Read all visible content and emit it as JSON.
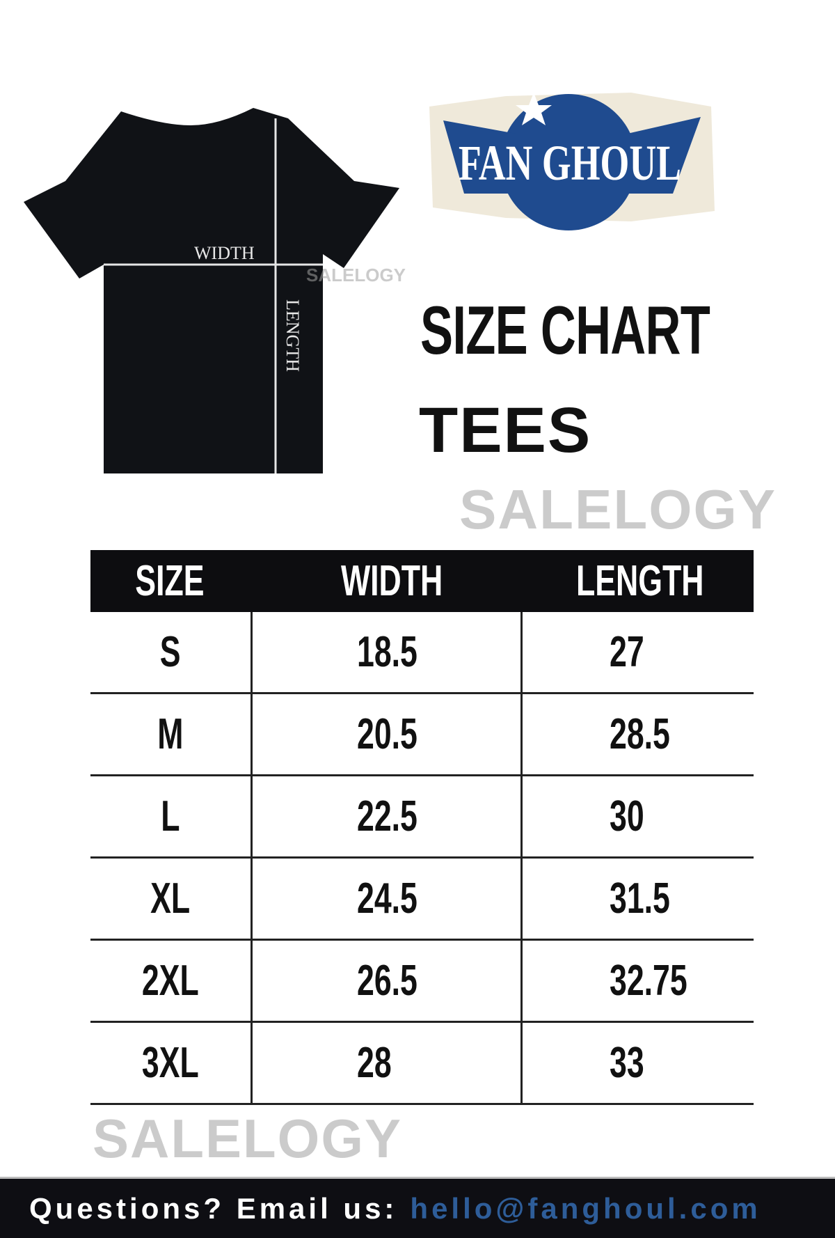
{
  "tee_diagram": {
    "width_label": "WIDTH",
    "length_label": "LENGTH"
  },
  "logo": {
    "text": "FAN GHOUL",
    "colors": {
      "blue": "#1f4b8f",
      "cream": "#ece5d3"
    }
  },
  "title": "SIZE CHART",
  "subtitle": "TEES",
  "watermarks": [
    "SALELOGY",
    "SALELOGY",
    "SALELOGY"
  ],
  "table": {
    "headers": [
      "SIZE",
      "WIDTH",
      "LENGTH"
    ],
    "rows": [
      [
        "S",
        "18.5",
        "27"
      ],
      [
        "M",
        "20.5",
        "28.5"
      ],
      [
        "L",
        "22.5",
        "30"
      ],
      [
        "XL",
        "24.5",
        "31.5"
      ],
      [
        "2XL",
        "26.5",
        "32.75"
      ],
      [
        "3XL",
        "28",
        "33"
      ]
    ]
  },
  "footer": {
    "question": "Questions? Email us:",
    "email": "hello@fanghoul.com"
  }
}
